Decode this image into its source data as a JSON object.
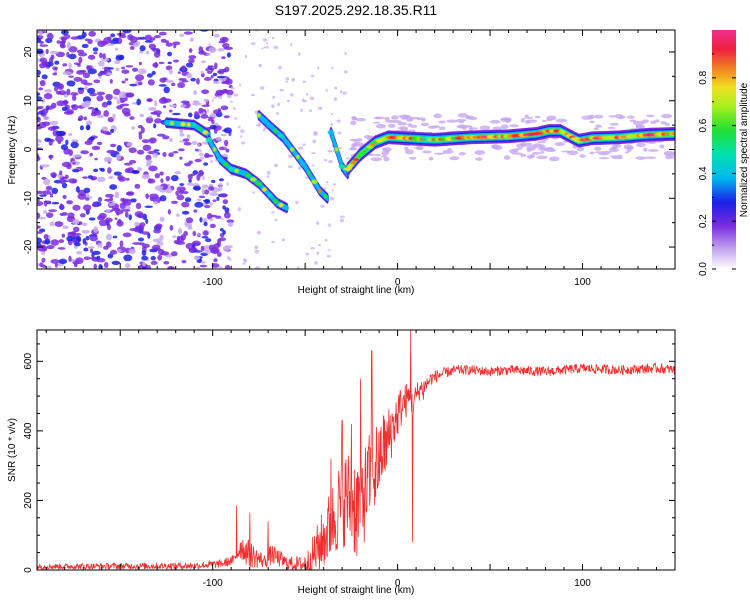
{
  "title": "S197.2025.292.18.35.R11",
  "colors": {
    "snr_line": "#ee3030",
    "axis": "#000000",
    "background": "#ffffff"
  },
  "chart_data": [
    {
      "type": "heatmap",
      "name": "spectrogram",
      "xlabel": "Height of straight line (km)",
      "ylabel": "Frequency (Hz)",
      "xlim": [
        -195,
        150
      ],
      "ylim": [
        -24.5,
        24.5
      ],
      "xticks": [
        -100,
        0,
        100
      ],
      "yticks": [
        -20,
        -10,
        0,
        10,
        20
      ],
      "colorbar": {
        "label": "Normalized spectral amplitude",
        "range": [
          0,
          1
        ],
        "ticks": [
          "0.0",
          "0.2",
          "0.4",
          "0.6",
          "0.8"
        ],
        "tick_values": [
          0.0,
          0.2,
          0.4,
          0.6,
          0.8
        ]
      },
      "ridge_segments": [
        {
          "points": [
            [
              -125,
              5.5
            ],
            [
              -110,
              5
            ],
            [
              -102,
              3
            ]
          ],
          "amplitude": 0.45
        },
        {
          "points": [
            [
              -102,
              2
            ],
            [
              -96,
              -2
            ],
            [
              -90,
              -4
            ],
            [
              -82,
              -5
            ],
            [
              -75,
              -7
            ],
            [
              -70,
              -9
            ],
            [
              -65,
              -11
            ],
            [
              -60,
              -12
            ]
          ],
          "amplitude": 0.35
        },
        {
          "points": [
            [
              -75,
              7
            ],
            [
              -68,
              4.5
            ],
            [
              -62,
              2.5
            ],
            [
              -56,
              -0.5
            ],
            [
              -50,
              -3.5
            ],
            [
              -46,
              -6
            ],
            [
              -42,
              -8.5
            ],
            [
              -38,
              -10
            ]
          ],
          "amplitude": 0.45
        },
        {
          "points": [
            [
              -36,
              3.5
            ],
            [
              -33,
              0
            ],
            [
              -30,
              -3.5
            ],
            [
              -27,
              -5
            ]
          ],
          "amplitude": 0.3
        },
        {
          "points": [
            [
              -27,
              -4
            ],
            [
              -20,
              -1
            ],
            [
              -12,
              1.5
            ],
            [
              -5,
              2.5
            ],
            [
              5,
              2.3
            ],
            [
              20,
              2.0
            ],
            [
              40,
              2.5
            ],
            [
              60,
              2.7
            ],
            [
              75,
              3.2
            ],
            [
              82,
              3.8
            ],
            [
              88,
              3.8
            ],
            [
              93,
              2.8
            ],
            [
              98,
              1.8
            ],
            [
              105,
              2.3
            ],
            [
              120,
              2.5
            ],
            [
              135,
              3.0
            ],
            [
              150,
              3.2
            ]
          ],
          "amplitude": 0.9
        }
      ]
    },
    {
      "type": "line",
      "name": "snr",
      "xlabel": "Height of straight line (km)",
      "ylabel": "SNR (10 * v/v)",
      "xlim": [
        -195,
        150
      ],
      "ylim": [
        0,
        690
      ],
      "xticks": [
        -100,
        0,
        100
      ],
      "yticks": [
        0,
        200,
        400,
        600
      ],
      "envelope": {
        "x": [
          -195,
          -110,
          -95,
          -88,
          -85,
          -80,
          -72,
          -68,
          -60,
          -52,
          -48,
          -44,
          -40,
          -36,
          -32,
          -28,
          -25,
          -22,
          -20,
          -17,
          -15,
          -12,
          -10,
          -8,
          -5,
          -2,
          0,
          2,
          5,
          7,
          8,
          10,
          12,
          15,
          18,
          22,
          28,
          32,
          40,
          50,
          60,
          80,
          100,
          120,
          140,
          150
        ],
        "y": [
          10,
          12,
          18,
          30,
          70,
          45,
          25,
          45,
          20,
          15,
          25,
          55,
          90,
          130,
          180,
          210,
          200,
          180,
          200,
          230,
          260,
          290,
          320,
          350,
          380,
          420,
          450,
          470,
          490,
          500,
          470,
          500,
          520,
          530,
          550,
          560,
          570,
          575,
          575,
          570,
          575,
          570,
          580,
          575,
          580,
          575
        ],
        "spread": [
          8,
          10,
          12,
          15,
          40,
          40,
          20,
          30,
          20,
          25,
          40,
          70,
          90,
          110,
          130,
          140,
          150,
          160,
          150,
          140,
          140,
          140,
          120,
          110,
          90,
          80,
          70,
          60,
          50,
          40,
          40,
          40,
          30,
          25,
          20,
          18,
          15,
          14,
          14,
          14,
          14,
          14,
          14,
          14,
          14,
          14
        ]
      },
      "peaks": [
        [
          -87,
          185
        ],
        [
          -80,
          165
        ],
        [
          -70,
          140
        ],
        [
          -36,
          320
        ],
        [
          -30,
          430
        ],
        [
          -25,
          420
        ],
        [
          -20,
          550
        ],
        [
          -14,
          630
        ],
        [
          -10,
          280
        ],
        [
          -6,
          300
        ],
        [
          0,
          450
        ],
        [
          7,
          690
        ],
        [
          8,
          80
        ],
        [
          14,
          490
        ]
      ]
    }
  ]
}
